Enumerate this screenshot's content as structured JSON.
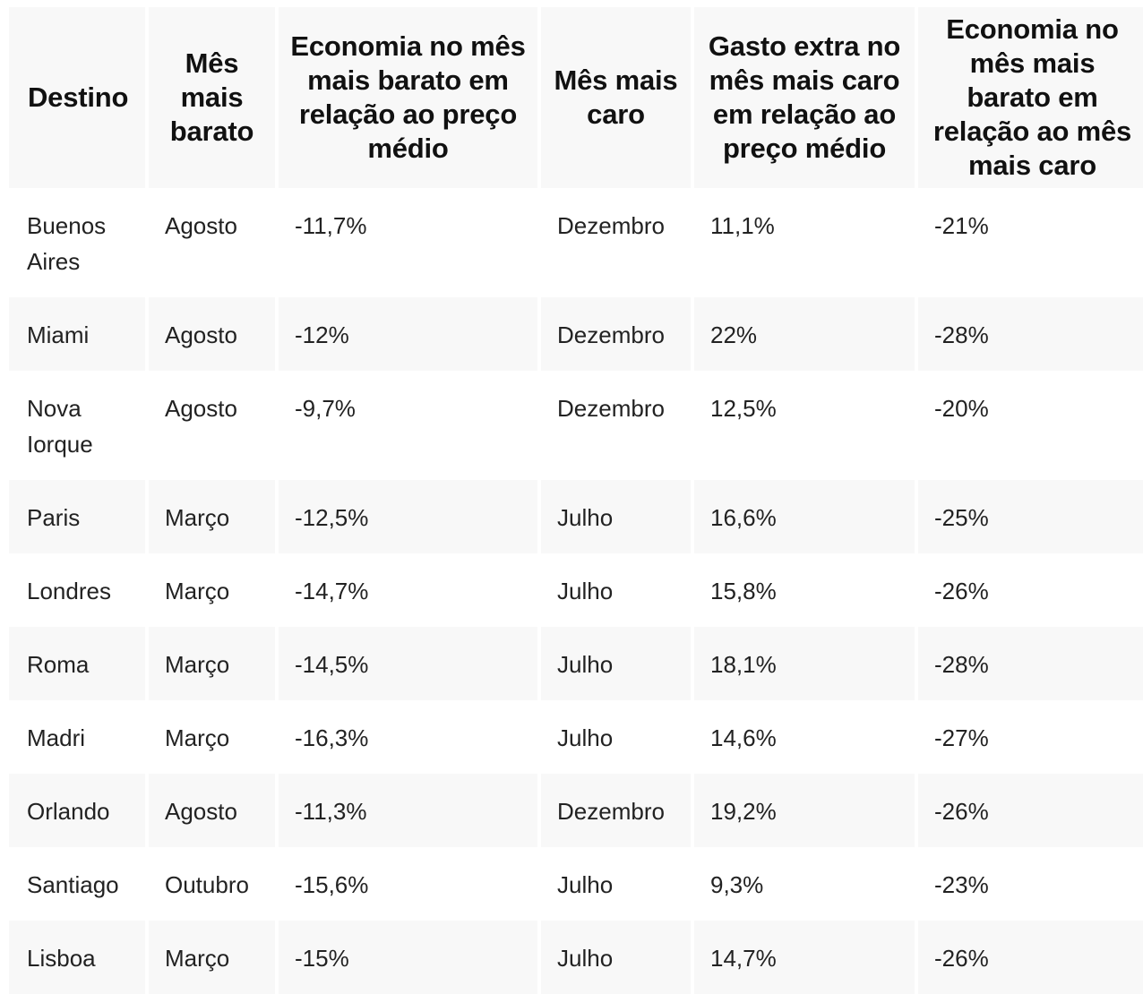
{
  "headers": [
    "Destino",
    "Mês mais barato",
    "Economia no mês mais barato em relação ao preço médio",
    "Mês mais caro",
    "Gasto extra no mês mais caro em relação ao preço médio",
    "Economia no mês mais barato em relação ao mês mais caro"
  ],
  "rows": [
    [
      "Buenos Aires",
      "Agosto",
      "-11,7%",
      "Dezembro",
      "11,1%",
      "-21%"
    ],
    [
      "Miami",
      "Agosto",
      "-12%",
      "Dezembro",
      "22%",
      "-28%"
    ],
    [
      "Nova Iorque",
      "Agosto",
      "-9,7%",
      "Dezembro",
      "12,5%",
      "-20%"
    ],
    [
      "Paris",
      "Março",
      "-12,5%",
      "Julho",
      "16,6%",
      "-25%"
    ],
    [
      "Londres",
      "Março",
      "-14,7%",
      "Julho",
      "15,8%",
      "-26%"
    ],
    [
      "Roma",
      "Março",
      "-14,5%",
      "Julho",
      "18,1%",
      "-28%"
    ],
    [
      "Madri",
      "Março",
      "-16,3%",
      "Julho",
      "14,6%",
      "-27%"
    ],
    [
      "Orlando",
      "Agosto",
      "-11,3%",
      "Dezembro",
      "19,2%",
      "-26%"
    ],
    [
      "Santiago",
      "Outubro",
      "-15,6%",
      "Julho",
      "9,3%",
      "-23%"
    ],
    [
      "Lisboa",
      "Março",
      "-15%",
      "Julho",
      "14,7%",
      "-26%"
    ]
  ]
}
